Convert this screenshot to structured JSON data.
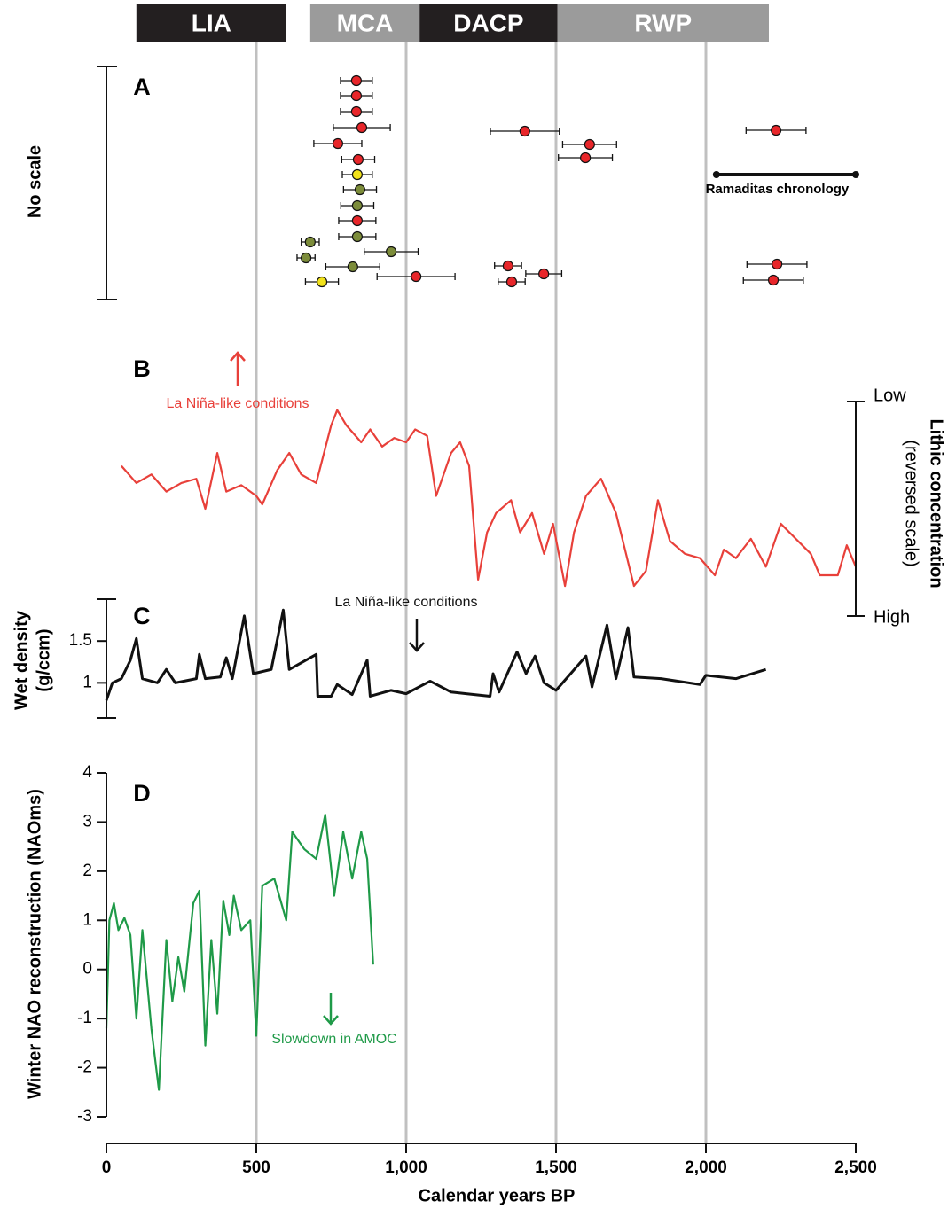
{
  "periods": [
    {
      "label": "LIA",
      "start": 100,
      "end": 600,
      "color": "#231f20"
    },
    {
      "label": "MCA",
      "start": 680,
      "end": 1045,
      "color": "#9b9b9b"
    },
    {
      "label": "DACP",
      "start": 1045,
      "end": 1505,
      "color": "#231f20"
    },
    {
      "label": "RWP",
      "start": 1505,
      "end": 2210,
      "color": "#9b9b9b"
    }
  ],
  "x_axis": {
    "xlim": [
      0,
      2500
    ],
    "xticks": [
      0,
      500,
      {
        "value": 1000,
        "label": "1,000"
      },
      {
        "value": 1500,
        "label": "1,500"
      },
      {
        "value": 2000,
        "label": "2,000"
      },
      {
        "value": 2500,
        "label": "2,500"
      }
    ],
    "xlabel": "Calendar years BP"
  },
  "chart_data": [
    {
      "type": "errorbar",
      "panel": "A",
      "ylabel": "No scale",
      "x": [
        834,
        834,
        834,
        852,
        772,
        840,
        837,
        846,
        837,
        837,
        837,
        680,
        950,
        666,
        822,
        719,
        1033,
        1396,
        1612,
        1598,
        1340,
        1352,
        1459,
        2234,
        2237,
        2225
      ],
      "errors": [
        53,
        53,
        53,
        95,
        80,
        55,
        50,
        55,
        55,
        62,
        62,
        30,
        90,
        30,
        90,
        55,
        130,
        115,
        90,
        90,
        45,
        45,
        60,
        100,
        100,
        100
      ],
      "colors": [
        "#e8262a",
        "#e8262a",
        "#e8262a",
        "#e8262a",
        "#e8262a",
        "#e8262a",
        "#f2e21a",
        "#7c8c3a",
        "#7c8c3a",
        "#e8262a",
        "#7c8c3a",
        "#7c8c3a",
        "#7c8c3a",
        "#7c8c3a",
        "#7c8c3a",
        "#f2e21a",
        "#e8262a",
        "#e8262a",
        "#e8262a",
        "#e8262a",
        "#e8262a",
        "#e8262a",
        "#e8262a",
        "#e8262a",
        "#e8262a",
        "#e8262a"
      ],
      "range_annotation": {
        "label": "Ramaditas chronology",
        "range": [
          2035,
          2500
        ]
      }
    },
    {
      "type": "line",
      "panel": "B",
      "ylabel": "Lithic concentration",
      "ylabel2": "(reversed scale)",
      "color": "#e8403a",
      "annotation": "La Niña-like conditions",
      "reversed": true,
      "ylim": [
        0,
        100
      ],
      "yticks": [
        {
          "value": 0,
          "label": "Low"
        },
        {
          "value": 100,
          "label": "High"
        }
      ],
      "x": [
        50,
        100,
        150,
        200,
        250,
        300,
        330,
        370,
        400,
        450,
        500,
        520,
        570,
        610,
        650,
        700,
        750,
        770,
        800,
        850,
        880,
        920,
        960,
        1000,
        1030,
        1070,
        1100,
        1150,
        1180,
        1210,
        1240,
        1270,
        1300,
        1350,
        1380,
        1420,
        1460,
        1490,
        1530,
        1560,
        1600,
        1650,
        1700,
        1760,
        1800,
        1840,
        1880,
        1930,
        1980,
        2030,
        2060,
        2100,
        2150,
        2200,
        2250,
        2300,
        2350,
        2380,
        2440,
        2470,
        2500
      ],
      "values": [
        30,
        38,
        34,
        42,
        38,
        36,
        50,
        24,
        42,
        39,
        44,
        48,
        32,
        24,
        34,
        38,
        11,
        4,
        11,
        19,
        13,
        21,
        17,
        19,
        13,
        16,
        44,
        24,
        19,
        30,
        83,
        61,
        52,
        46,
        61,
        52,
        71,
        57,
        86,
        61,
        44,
        36,
        52,
        86,
        79,
        46,
        65,
        71,
        73,
        81,
        69,
        73,
        64,
        77,
        57,
        64,
        71,
        81,
        81,
        67,
        77
      ]
    },
    {
      "type": "line",
      "panel": "C",
      "ylabel": "Wet density",
      "ylabel2": "(g/ccm)",
      "color": "#111111",
      "annotation": "La Niña-like conditions",
      "ylim": [
        0.58,
        2.0
      ],
      "yticks": [
        1,
        1.5
      ],
      "x": [
        0,
        20,
        50,
        80,
        100,
        120,
        170,
        200,
        230,
        300,
        310,
        330,
        380,
        400,
        420,
        460,
        490,
        550,
        590,
        610,
        700,
        705,
        750,
        770,
        820,
        870,
        880,
        950,
        1000,
        1080,
        1150,
        1200,
        1280,
        1290,
        1310,
        1370,
        1400,
        1430,
        1460,
        1500,
        1600,
        1620,
        1670,
        1700,
        1740,
        1760,
        1850,
        1980,
        2000,
        2100,
        2200
      ],
      "values": [
        0.79,
        1.0,
        1.05,
        1.27,
        1.53,
        1.05,
        1.0,
        1.16,
        1.0,
        1.05,
        1.34,
        1.05,
        1.07,
        1.3,
        1.05,
        1.8,
        1.11,
        1.16,
        1.87,
        1.16,
        1.34,
        0.84,
        0.84,
        0.98,
        0.86,
        1.27,
        0.84,
        0.91,
        0.87,
        1.02,
        0.89,
        0.87,
        0.84,
        1.11,
        0.89,
        1.37,
        1.11,
        1.32,
        1.0,
        0.91,
        1.32,
        0.95,
        1.69,
        1.05,
        1.66,
        1.07,
        1.05,
        0.98,
        1.09,
        1.05,
        1.16
      ]
    },
    {
      "type": "line",
      "panel": "D",
      "ylabel": "Winter NAO reconstruction (NAOms)",
      "color": "#1f9a48",
      "annotation": "Slowdown in AMOC",
      "ylim": [
        -3,
        4
      ],
      "yticks": [
        -3,
        -2,
        -1,
        0,
        1,
        2,
        3,
        4
      ],
      "x": [
        0,
        10,
        25,
        40,
        60,
        80,
        100,
        120,
        150,
        175,
        200,
        220,
        240,
        260,
        290,
        310,
        330,
        350,
        370,
        390,
        410,
        425,
        450,
        480,
        500,
        520,
        560,
        600,
        620,
        660,
        700,
        730,
        760,
        790,
        820,
        850,
        870,
        890
      ],
      "values": [
        -1.2,
        1.0,
        1.35,
        0.8,
        1.05,
        0.7,
        -1.0,
        0.8,
        -1.2,
        -2.45,
        0.6,
        -0.65,
        0.25,
        -0.45,
        1.35,
        1.6,
        -1.55,
        0.6,
        -0.9,
        1.4,
        0.7,
        1.5,
        0.8,
        1.0,
        -1.35,
        1.7,
        1.85,
        1.0,
        2.8,
        2.45,
        2.25,
        3.15,
        1.5,
        2.8,
        1.85,
        2.8,
        2.25,
        0.1
      ]
    }
  ]
}
